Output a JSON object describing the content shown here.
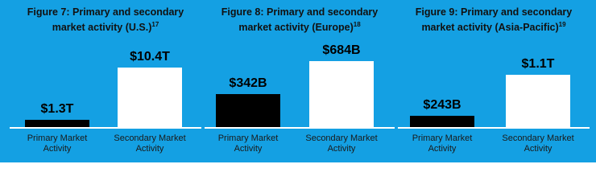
{
  "chart_data": [
    {
      "type": "bar",
      "title": "Figure 7: Primary and secondary market activity (U.S.)",
      "title_footnote": "17",
      "categories": [
        "Primary Market Activity",
        "Secondary Market Activity"
      ],
      "values": [
        1.3,
        10.4
      ],
      "value_labels": [
        "$1.3T",
        "$10.4T"
      ],
      "colors": [
        "#000000",
        "#ffffff"
      ]
    },
    {
      "type": "bar",
      "title": "Figure 8: Primary and secondary market activity (Europe)",
      "title_footnote": "18",
      "categories": [
        "Primary Market Activity",
        "Secondary Market Activity"
      ],
      "values": [
        342,
        684
      ],
      "value_labels": [
        "$342B",
        "$684B"
      ],
      "colors": [
        "#000000",
        "#ffffff"
      ]
    },
    {
      "type": "bar",
      "title": "Figure 9: Primary and secondary market activity (Asia-Pacific)",
      "title_footnote": "19",
      "categories": [
        "Primary Market Activity",
        "Secondary Market Activity"
      ],
      "values": [
        243,
        1100
      ],
      "value_labels": [
        "$243B",
        "$1.1T"
      ],
      "colors": [
        "#000000",
        "#ffffff"
      ]
    }
  ]
}
